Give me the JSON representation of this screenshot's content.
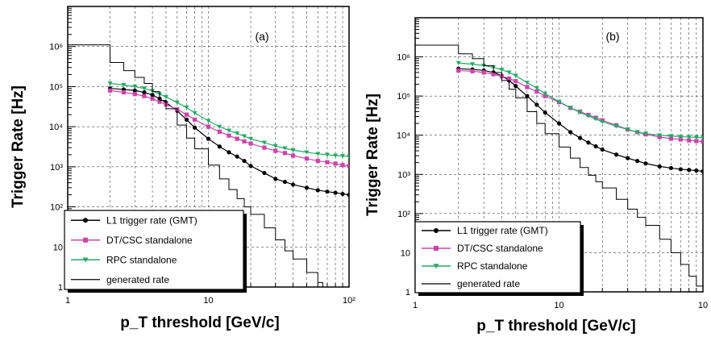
{
  "chart_data": [
    {
      "type": "line",
      "panel_label": "(a)",
      "xlabel": "p_T threshold [GeV/c]",
      "ylabel": "Trigger Rate [Hz]",
      "xscale": "log",
      "yscale": "log",
      "xlim": [
        1,
        100
      ],
      "ylim": [
        1,
        10000000
      ],
      "x_tick_labels": [
        "1",
        "10",
        "10²"
      ],
      "y_tick_labels": [
        "1",
        "10",
        "10²",
        "10³",
        "10⁴",
        "10⁵",
        "10⁶"
      ],
      "grid": true,
      "legend_position": "bottom-left",
      "series": [
        {
          "name": "L1 trigger rate (GMT)",
          "color": "#000000",
          "marker": "circle",
          "x": [
            2,
            2.5,
            3,
            3.5,
            4,
            4.5,
            5,
            6,
            7,
            8,
            10,
            12,
            14,
            16,
            18,
            20,
            25,
            30,
            35,
            40,
            50,
            60,
            70,
            80,
            90,
            100
          ],
          "y": [
            90000,
            85000,
            80000,
            72000,
            62000,
            50000,
            40000,
            25000,
            15000,
            9500,
            5000,
            3200,
            2300,
            1800,
            1400,
            1050,
            700,
            500,
            420,
            360,
            300,
            260,
            240,
            225,
            210,
            200
          ]
        },
        {
          "name": "DT/CSC standalone",
          "color": "#cc44aa",
          "marker": "square",
          "x": [
            2,
            2.5,
            3,
            3.5,
            4,
            4.5,
            5,
            6,
            7,
            8,
            10,
            12,
            14,
            16,
            18,
            20,
            25,
            30,
            35,
            40,
            50,
            60,
            70,
            80,
            90,
            100
          ],
          "y": [
            80000,
            72000,
            65000,
            58000,
            50000,
            42000,
            36000,
            27000,
            20000,
            15000,
            10000,
            7500,
            6000,
            5000,
            4300,
            3800,
            3000,
            2500,
            2200,
            1900,
            1600,
            1400,
            1300,
            1200,
            1100,
            1050
          ]
        },
        {
          "name": "RPC standalone",
          "color": "#22aa66",
          "marker": "triangle-down",
          "x": [
            2,
            2.5,
            3,
            3.5,
            4,
            4.5,
            5,
            6,
            7,
            8,
            10,
            12,
            14,
            16,
            18,
            20,
            25,
            30,
            35,
            40,
            50,
            60,
            70,
            80,
            90,
            100
          ],
          "y": [
            120000,
            110000,
            100000,
            90000,
            78000,
            65000,
            55000,
            40000,
            30000,
            22000,
            14000,
            10000,
            8000,
            6800,
            5800,
            5000,
            4000,
            3300,
            2900,
            2600,
            2300,
            2100,
            2000,
            1900,
            1850,
            1800
          ]
        },
        {
          "name": "generated rate",
          "color": "#000000",
          "marker": "step",
          "x": [
            1,
            2,
            2.5,
            3,
            3.5,
            4,
            4.5,
            5,
            6,
            7,
            8,
            10,
            12,
            14,
            16,
            18,
            20,
            25,
            30,
            35,
            40,
            50,
            60,
            65,
            70,
            80,
            90,
            100
          ],
          "y": [
            1100000,
            400000,
            250000,
            170000,
            120000,
            75000,
            45000,
            28000,
            11000,
            5200,
            2800,
            1100,
            500,
            270,
            160,
            100,
            65,
            30,
            15,
            8,
            5,
            2.3,
            1.3,
            1,
            1,
            1,
            1,
            1
          ]
        }
      ]
    },
    {
      "type": "line",
      "panel_label": "(b)",
      "xlabel": "p_T threshold [GeV/c]",
      "ylabel": "Trigger Rate [Hz]",
      "xscale": "log",
      "yscale": "log",
      "xlim": [
        1,
        100
      ],
      "ylim": [
        1,
        10000000
      ],
      "x_tick_labels": [
        "1",
        "10",
        "10"
      ],
      "y_tick_labels": [
        "1",
        "10",
        "10²",
        "10³",
        "10⁴",
        "10⁵",
        "10⁶"
      ],
      "grid": true,
      "legend_position": "bottom-left",
      "series": [
        {
          "name": "L1 trigger rate (GMT)",
          "color": "#000000",
          "marker": "circle",
          "x": [
            2,
            2.5,
            3,
            3.5,
            4,
            4.5,
            5,
            6,
            7,
            8,
            10,
            12,
            14,
            16,
            18,
            20,
            25,
            30,
            35,
            40,
            50,
            60,
            70,
            80,
            90,
            100
          ],
          "y": [
            500000,
            480000,
            450000,
            400000,
            330000,
            250000,
            180000,
            100000,
            60000,
            38000,
            20000,
            12000,
            8500,
            6500,
            5200,
            4300,
            3200,
            2600,
            2200,
            1900,
            1600,
            1450,
            1350,
            1300,
            1250,
            1200
          ]
        },
        {
          "name": "DT/CSC standalone",
          "color": "#cc44aa",
          "marker": "square",
          "x": [
            2,
            2.5,
            3,
            3.5,
            4,
            4.5,
            5,
            6,
            7,
            8,
            10,
            12,
            14,
            16,
            18,
            20,
            25,
            30,
            35,
            40,
            50,
            60,
            70,
            80,
            90,
            100
          ],
          "y": [
            450000,
            430000,
            400000,
            360000,
            320000,
            280000,
            240000,
            170000,
            130000,
            100000,
            70000,
            50000,
            40000,
            33000,
            28000,
            24000,
            18000,
            14000,
            12000,
            10500,
            9000,
            8200,
            7800,
            7400,
            7100,
            6900
          ]
        },
        {
          "name": "RPC standalone",
          "color": "#22aa66",
          "marker": "triangle-down",
          "x": [
            2,
            2.5,
            3,
            3.5,
            4,
            4.5,
            5,
            6,
            7,
            8,
            10,
            12,
            14,
            16,
            18,
            20,
            25,
            30,
            35,
            40,
            50,
            60,
            70,
            80,
            90,
            100
          ],
          "y": [
            700000,
            650000,
            600000,
            540000,
            470000,
            400000,
            330000,
            220000,
            160000,
            115000,
            72000,
            50000,
            38000,
            31000,
            26000,
            22000,
            17000,
            14000,
            12000,
            11000,
            10000,
            9500,
            9200,
            9000,
            8800,
            8600
          ]
        },
        {
          "name": "generated rate",
          "color": "#000000",
          "marker": "step",
          "x": [
            1,
            2,
            2.5,
            3,
            3.5,
            4,
            4.5,
            5,
            6,
            7,
            8,
            10,
            12,
            14,
            16,
            18,
            20,
            25,
            30,
            35,
            40,
            50,
            60,
            70,
            80,
            90,
            100
          ],
          "y": [
            2000000,
            1200000,
            900000,
            600000,
            400000,
            250000,
            150000,
            90000,
            40000,
            20000,
            11000,
            5000,
            2600,
            1500,
            950,
            650,
            450,
            230,
            130,
            80,
            50,
            22,
            10,
            5,
            2.5,
            1.4,
            1
          ]
        }
      ]
    }
  ]
}
